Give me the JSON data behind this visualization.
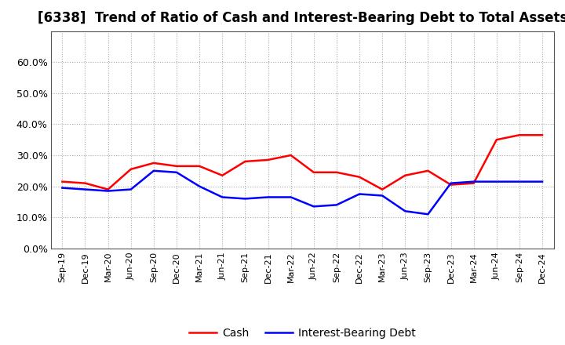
{
  "title": "[6338]  Trend of Ratio of Cash and Interest-Bearing Debt to Total Assets",
  "x_labels": [
    "Sep-19",
    "Dec-19",
    "Mar-20",
    "Jun-20",
    "Sep-20",
    "Dec-20",
    "Mar-21",
    "Jun-21",
    "Sep-21",
    "Dec-21",
    "Mar-22",
    "Jun-22",
    "Sep-22",
    "Dec-22",
    "Mar-23",
    "Jun-23",
    "Sep-23",
    "Dec-23",
    "Mar-24",
    "Jun-24",
    "Sep-24",
    "Dec-24"
  ],
  "cash": [
    21.5,
    21.0,
    19.0,
    25.5,
    27.5,
    26.5,
    26.5,
    23.5,
    28.0,
    28.5,
    30.0,
    24.5,
    24.5,
    23.0,
    19.0,
    23.5,
    25.0,
    20.5,
    21.0,
    35.0,
    36.5,
    36.5
  ],
  "ibd": [
    19.5,
    19.0,
    18.5,
    19.0,
    25.0,
    24.5,
    20.0,
    16.5,
    16.0,
    16.5,
    16.5,
    13.5,
    14.0,
    17.5,
    17.0,
    12.0,
    11.0,
    21.0,
    21.5,
    21.5,
    21.5,
    21.5
  ],
  "cash_color": "#FF0000",
  "ibd_color": "#0000FF",
  "ylim": [
    0,
    70
  ],
  "yticks": [
    0,
    10,
    20,
    30,
    40,
    50,
    60
  ],
  "ytick_labels": [
    "0.0%",
    "10.0%",
    "20.0%",
    "30.0%",
    "40.0%",
    "50.0%",
    "60.0%"
  ],
  "background_color": "#FFFFFF",
  "plot_bg_color": "#FFFFFF",
  "grid_color": "#AAAAAA",
  "legend_cash": "Cash",
  "legend_ibd": "Interest-Bearing Debt",
  "title_fontsize": 12,
  "line_width": 1.8
}
